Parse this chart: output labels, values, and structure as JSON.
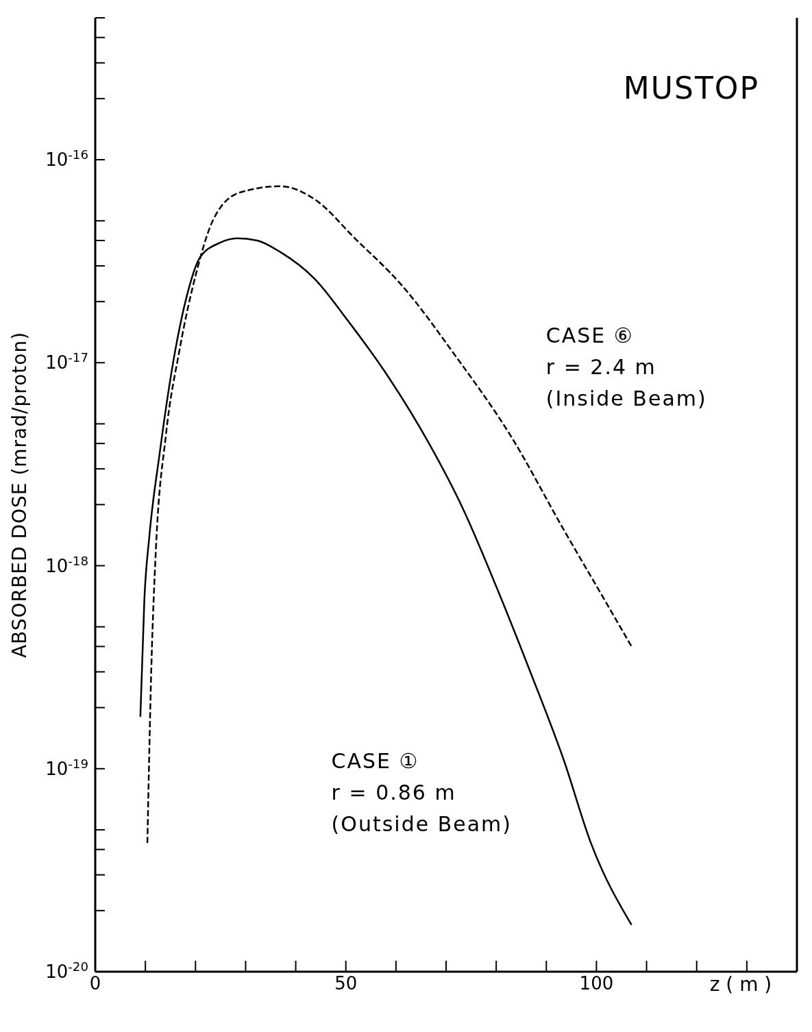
{
  "chart_data": {
    "type": "line",
    "title": "MUSTOP",
    "xlabel": "z ( m )",
    "ylabel": "ABSORBED DOSE (mrad/proton)",
    "log": "y",
    "marker": "none",
    "xlim": [
      0,
      140
    ],
    "xticks": [
      0,
      {
        "value": 10,
        "label": null
      },
      {
        "value": 20,
        "label": null
      },
      {
        "value": 30,
        "label": null
      },
      {
        "value": 40,
        "label": null
      },
      50,
      {
        "value": 60,
        "label": null
      },
      {
        "value": 70,
        "label": null
      },
      {
        "value": 80,
        "label": null
      },
      {
        "value": 90,
        "label": null
      },
      100,
      {
        "value": 110,
        "label": null
      },
      {
        "value": 120,
        "label": null
      },
      {
        "value": 130,
        "label": null
      }
    ],
    "ylim": [
      1e-20,
      5e-16
    ],
    "yticks": [
      {
        "value": 1e-20,
        "label": "10$^{-20}$"
      },
      {
        "value": 2e-20,
        "label": null
      },
      {
        "value": 3e-20,
        "label": null
      },
      {
        "value": 4e-20,
        "label": null
      },
      {
        "value": 5e-20,
        "label": null
      },
      {
        "value": 1e-19,
        "label": "10$^{-19}$"
      },
      {
        "value": 2e-19,
        "label": null
      },
      {
        "value": 3e-19,
        "label": null
      },
      {
        "value": 4e-19,
        "label": null
      },
      {
        "value": 5e-19,
        "label": null
      },
      {
        "value": 1e-18,
        "label": "10$^{-18}$"
      },
      {
        "value": 2e-18,
        "label": null
      },
      {
        "value": 3e-18,
        "label": null
      },
      {
        "value": 4e-18,
        "label": null
      },
      {
        "value": 5e-18,
        "label": null
      },
      {
        "value": 1e-17,
        "label": "10$^{-17}$"
      },
      {
        "value": 2e-17,
        "label": null
      },
      {
        "value": 3e-17,
        "label": null
      },
      {
        "value": 4e-17,
        "label": null
      },
      {
        "value": 5e-17,
        "label": null
      },
      {
        "value": 1e-16,
        "label": "10$^{-16}$"
      },
      {
        "value": 2e-16,
        "label": null
      },
      {
        "value": 3e-16,
        "label": null
      },
      {
        "value": 4e-16,
        "label": null
      },
      {
        "value": 5e-16,
        "label": null
      }
    ],
    "series": [
      {
        "color": "#000000",
        "line_style": "solid",
        "x": [
          9.0,
          9.8,
          10.8,
          12.8,
          15.5,
          18.2,
          20.9,
          24.9,
          28.3,
          32.3,
          37.0,
          43.7,
          50.5,
          58.5,
          66.6,
          73.4,
          80.1,
          86.8,
          93.5,
          98.9,
          107.0
        ],
        "values": [
          1.8e-19,
          6.8e-19,
          1.4e-18,
          3.5e-18,
          9.9e-18,
          2.1e-17,
          3.3e-17,
          3.9e-17,
          4.1e-17,
          4e-17,
          3.5e-17,
          2.6e-17,
          1.6e-17,
          8.5e-18,
          4e-18,
          1.9e-18,
          7.8e-19,
          3e-19,
          1.1e-19,
          4.3e-20,
          1.7e-20
        ]
      },
      {
        "color": "#000000",
        "line_style": "dashed",
        "x": [
          10.4,
          11.2,
          12.1,
          14.1,
          16.8,
          20.2,
          23.6,
          28.9,
          37.0,
          43.7,
          51.8,
          61.2,
          72.0,
          82.8,
          93.5,
          101.6,
          107.0
        ],
        "values": [
          4.3e-20,
          3.2e-19,
          1.2e-18,
          4.4e-18,
          1.15e-17,
          2.8e-17,
          5.1e-17,
          6.9e-17,
          7.4e-17,
          6.4e-17,
          4.1e-17,
          2.4e-17,
          1.07e-17,
          4.4e-18,
          1.5e-18,
          6.8e-19,
          4e-19
        ]
      }
    ],
    "annotations": [
      "CASE ⑥\nr = 2.4 m\n(Inside Beam)",
      "CASE ①\nr = 0.86 m\n(Outside Beam)"
    ]
  }
}
